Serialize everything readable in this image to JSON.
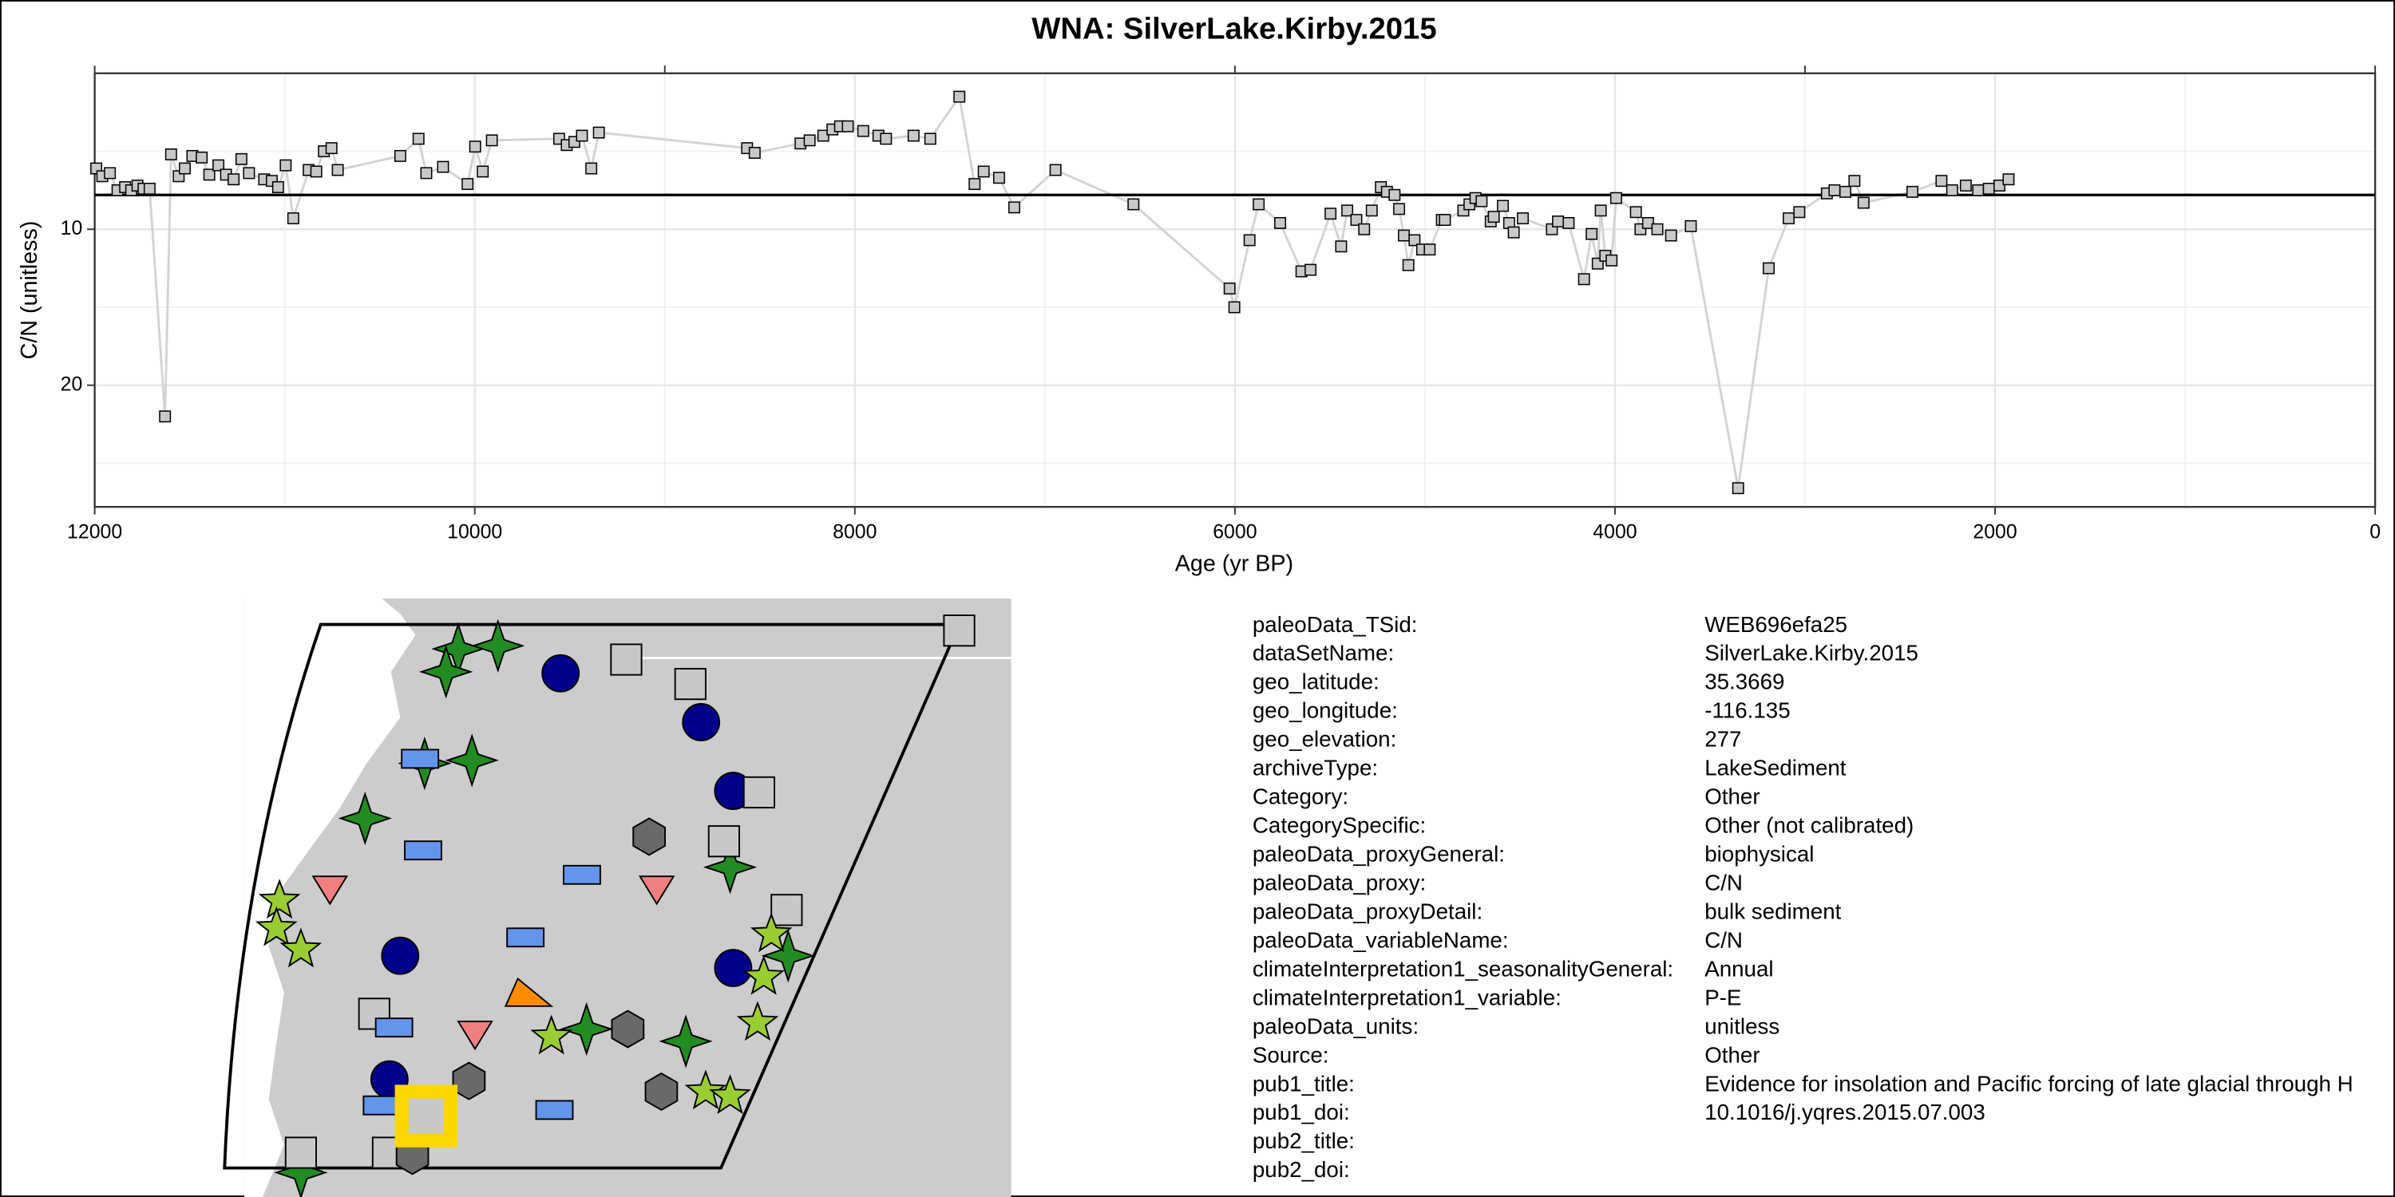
{
  "chart_data": {
    "type": "line",
    "title": "WNA: SilverLake.Kirby.2015",
    "x_label": "Age (yr BP)",
    "y_label": "C/N (unitless)",
    "x": [
      11992,
      11960,
      11920,
      11880,
      11840,
      11808,
      11775,
      11743,
      11711,
      11630,
      11598,
      11558,
      11526,
      11486,
      11437,
      11397,
      11349,
      11309,
      11269,
      11228,
      11188,
      11108,
      11068,
      11035,
      10995,
      10955,
      10874,
      10834,
      10794,
      10754,
      10721,
      10392,
      10296,
      10255,
      10167,
      10038,
      9998,
      9958,
      9910,
      9556,
      9516,
      9476,
      9436,
      9387,
      9347,
      8567,
      8527,
      8286,
      8238,
      8166,
      8118,
      8078,
      8037,
      7956,
      7876,
      7836,
      7691,
      7603,
      7450,
      7370,
      7322,
      7241,
      7161,
      6944,
      6534,
      6028,
      6003,
      5923,
      5875,
      5762,
      5650,
      5602,
      5497,
      5441,
      5409,
      5361,
      5320,
      5280,
      5232,
      5200,
      5160,
      5136,
      5111,
      5087,
      5055,
      5015,
      4975,
      4911,
      4895,
      4798,
      4766,
      4734,
      4702,
      4654,
      4638,
      4590,
      4557,
      4533,
      4485,
      4332,
      4300,
      4244,
      4163,
      4123,
      4091,
      4075,
      4051,
      4018,
      3994,
      3890,
      3866,
      3826,
      3777,
      3705,
      3601,
      3352,
      3191,
      3086,
      3030,
      2885,
      2845,
      2788,
      2740,
      2692,
      2435,
      2282,
      2226,
      2154,
      2089,
      2033,
      1977,
      1929
    ],
    "values": [
      6.1,
      6.6,
      6.4,
      7.5,
      7.3,
      7.5,
      7.2,
      7.4,
      7.4,
      22.0,
      5.2,
      6.6,
      6.1,
      5.3,
      5.4,
      6.5,
      5.9,
      6.5,
      6.8,
      5.5,
      6.4,
      6.8,
      6.9,
      7.3,
      5.9,
      9.3,
      6.2,
      6.3,
      5.0,
      4.8,
      6.2,
      5.3,
      4.2,
      6.4,
      6.0,
      7.1,
      4.7,
      6.3,
      4.3,
      4.2,
      4.6,
      4.4,
      4.0,
      6.1,
      3.8,
      4.8,
      5.1,
      4.5,
      4.3,
      4.0,
      3.6,
      3.4,
      3.4,
      3.7,
      4.0,
      4.2,
      4.0,
      4.2,
      1.5,
      7.1,
      6.3,
      6.7,
      8.6,
      6.2,
      8.4,
      13.8,
      15.0,
      10.7,
      8.4,
      9.6,
      12.7,
      12.6,
      9.0,
      11.1,
      8.8,
      9.4,
      10.0,
      8.8,
      7.3,
      7.6,
      7.8,
      8.7,
      10.4,
      12.3,
      10.7,
      11.3,
      11.3,
      9.4,
      9.4,
      8.8,
      8.4,
      8.0,
      8.2,
      9.5,
      9.2,
      8.5,
      9.6,
      10.2,
      9.3,
      10.0,
      9.5,
      9.6,
      13.2,
      10.3,
      12.2,
      8.8,
      11.7,
      12.0,
      8.0,
      8.9,
      10.0,
      9.6,
      10.0,
      10.4,
      9.8,
      26.6,
      12.5,
      9.3,
      8.9,
      7.7,
      7.5,
      7.6,
      6.9,
      8.3,
      7.6,
      6.9,
      7.5,
      7.2,
      7.5,
      7.4,
      7.2,
      6.8
    ],
    "xlim": [
      12000,
      0
    ],
    "ylim": [
      0,
      27.8
    ],
    "xticks": [
      12000,
      10000,
      8000,
      6000,
      4000,
      2000,
      0
    ],
    "yticks": [
      10,
      20
    ],
    "xminor": [
      11000,
      9000,
      7000,
      5000,
      3000,
      1000
    ],
    "yminor": [
      5,
      15,
      25
    ],
    "x2ticks": [
      12000,
      9000,
      6000,
      3000,
      0
    ],
    "hline": 7.8,
    "point_color": "#c8c8c8",
    "line_color": "#d3d3d3",
    "grid": true
  },
  "info": {
    "rows": [
      [
        "paleoData_TSid:",
        "WEB696efa25"
      ],
      [
        "dataSetName:",
        "SilverLake.Kirby.2015"
      ],
      [
        "geo_latitude:",
        "35.3669"
      ],
      [
        "geo_longitude:",
        "-116.135"
      ],
      [
        "geo_elevation:",
        "277"
      ],
      [
        "archiveType:",
        "LakeSediment"
      ],
      [
        "Category:",
        "Other"
      ],
      [
        "CategorySpecific:",
        "Other (not calibrated)"
      ],
      [
        "paleoData_proxyGeneral:",
        "biophysical"
      ],
      [
        "paleoData_proxy:",
        "C/N"
      ],
      [
        "paleoData_proxyDetail:",
        "bulk sediment"
      ],
      [
        "paleoData_variableName:",
        "C/N"
      ],
      [
        "climateInterpretation1_seasonalityGeneral:",
        "Annual"
      ],
      [
        "climateInterpretation1_variable:",
        "P-E"
      ],
      [
        "paleoData_units:",
        "unitless"
      ],
      [
        "Source:",
        "Other"
      ],
      [
        "pub1_title:",
        "Evidence for insolation and Pacific forcing of late glacial through H"
      ],
      [
        "pub1_doi:",
        "10.1016/j.yqres.2015.07.003"
      ],
      [
        "pub2_title:",
        null
      ],
      [
        "pub2_doi:",
        null
      ]
    ]
  }
}
